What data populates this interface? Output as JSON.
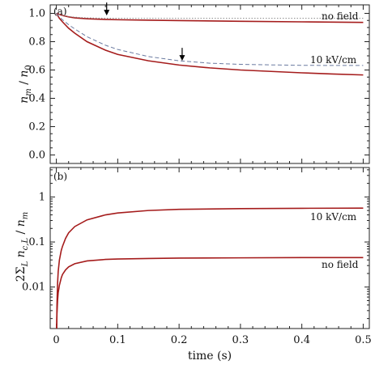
{
  "chart_data": [
    {
      "type": "line",
      "panel_label": "(a)",
      "ylabel_parts": {
        "n": "n",
        "sub": "m",
        "slash": " / ",
        "n0": "n",
        "sub0": "0"
      },
      "xlim": [
        -0.01,
        0.51
      ],
      "ylim": [
        -0.06,
        1.06
      ],
      "yticks": [
        "0.0",
        "0.2",
        "0.4",
        "0.6",
        "0.8",
        "1.0"
      ],
      "ytick_values": [
        0.0,
        0.2,
        0.4,
        0.6,
        0.8,
        1.0
      ],
      "xticks": [
        0,
        0.1,
        0.2,
        0.3,
        0.4,
        0.5
      ],
      "series": [
        {
          "label": "no field",
          "color": "#a51c1c",
          "style": "solid",
          "x": [
            0,
            0.005,
            0.01,
            0.02,
            0.03,
            0.05,
            0.08,
            0.1,
            0.15,
            0.2,
            0.3,
            0.4,
            0.5
          ],
          "y": [
            1.0,
            0.992,
            0.985,
            0.975,
            0.968,
            0.962,
            0.957,
            0.955,
            0.952,
            0.949,
            0.944,
            0.94,
            0.936
          ]
        },
        {
          "color": "#8a8a8a",
          "style": "dotted",
          "x": [
            0,
            0.005,
            0.01,
            0.02,
            0.03,
            0.05,
            0.08,
            0.1,
            0.2,
            0.3,
            0.4,
            0.5
          ],
          "y": [
            1.0,
            0.992,
            0.986,
            0.978,
            0.973,
            0.968,
            0.966,
            0.965,
            0.965,
            0.965,
            0.965,
            0.965
          ]
        },
        {
          "label": "10 kV/cm",
          "color": "#a51c1c",
          "style": "solid",
          "x": [
            0,
            0.005,
            0.01,
            0.02,
            0.03,
            0.05,
            0.08,
            0.1,
            0.15,
            0.2,
            0.25,
            0.3,
            0.35,
            0.4,
            0.45,
            0.5
          ],
          "y": [
            1.0,
            0.965,
            0.94,
            0.895,
            0.86,
            0.8,
            0.74,
            0.71,
            0.665,
            0.635,
            0.615,
            0.6,
            0.59,
            0.58,
            0.572,
            0.565
          ]
        },
        {
          "color": "#6a7aa0",
          "style": "dashed",
          "x": [
            0,
            0.005,
            0.01,
            0.02,
            0.03,
            0.05,
            0.08,
            0.1,
            0.15,
            0.2,
            0.25,
            0.3,
            0.35,
            0.4,
            0.45,
            0.5
          ],
          "y": [
            1.0,
            0.975,
            0.955,
            0.92,
            0.89,
            0.835,
            0.775,
            0.745,
            0.695,
            0.665,
            0.648,
            0.64,
            0.636,
            0.633,
            0.632,
            0.632
          ]
        }
      ],
      "arrows": [
        {
          "x": 0.082,
          "y": 0.985
        },
        {
          "x": 0.205,
          "y": 0.665
        }
      ]
    },
    {
      "type": "line",
      "panel_label": "(b)",
      "ylabel_parts": {
        "prefix": "2Σ",
        "subL": "L",
        "n": " n",
        "subcL": "c,L",
        "slash": " / ",
        "nm": "n",
        "subm": "m"
      },
      "yscale": "log",
      "xlim": [
        -0.01,
        0.51
      ],
      "ylim": [
        0.0012,
        4.5
      ],
      "yticks": [
        "0.01",
        "0.1",
        "1"
      ],
      "ytick_values": [
        0.01,
        0.1,
        1
      ],
      "xticks": [
        "0",
        "0.1",
        "0.2",
        "0.3",
        "0.4",
        "0.5"
      ],
      "xtick_values": [
        0,
        0.1,
        0.2,
        0.3,
        0.4,
        0.5
      ],
      "xlabel": "time (s)",
      "series": [
        {
          "label": "10 kV/cm",
          "color": "#a51c1c",
          "x": [
            0.0005,
            0.001,
            0.002,
            0.003,
            0.005,
            0.008,
            0.01,
            0.015,
            0.02,
            0.03,
            0.05,
            0.08,
            0.1,
            0.15,
            0.2,
            0.3,
            0.4,
            0.5
          ],
          "y": [
            0.0012,
            0.004,
            0.012,
            0.022,
            0.04,
            0.065,
            0.08,
            0.12,
            0.16,
            0.22,
            0.31,
            0.4,
            0.44,
            0.5,
            0.53,
            0.55,
            0.56,
            0.565
          ]
        },
        {
          "label": "no field",
          "color": "#a51c1c",
          "x": [
            0.0005,
            0.001,
            0.002,
            0.003,
            0.005,
            0.008,
            0.01,
            0.015,
            0.02,
            0.03,
            0.05,
            0.08,
            0.1,
            0.15,
            0.2,
            0.3,
            0.4,
            0.5
          ],
          "y": [
            0.0012,
            0.0025,
            0.005,
            0.0075,
            0.011,
            0.016,
            0.019,
            0.024,
            0.028,
            0.033,
            0.038,
            0.041,
            0.042,
            0.043,
            0.044,
            0.0445,
            0.045,
            0.045
          ]
        }
      ]
    }
  ]
}
